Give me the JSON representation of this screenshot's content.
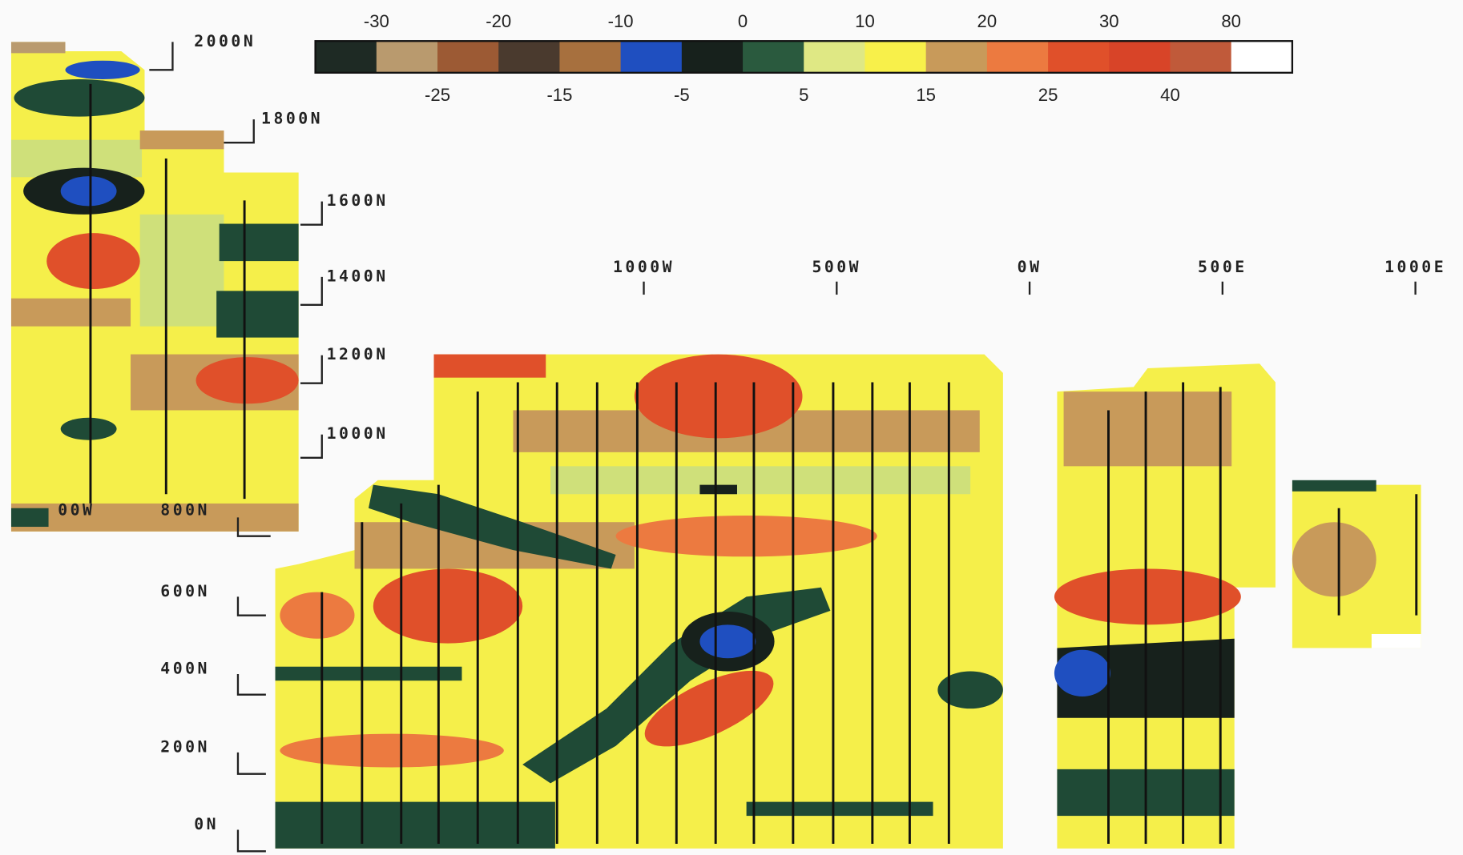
{
  "legend": {
    "top_labels": [
      "-30",
      "-20",
      "-10",
      "0",
      "10",
      "20",
      "30",
      "80"
    ],
    "bottom_labels": [
      "-25",
      "-15",
      "-5",
      "5",
      "15",
      "25",
      "40"
    ],
    "colors": [
      "#1e2a24",
      "#b99a6e",
      "#9c5a34",
      "#4a3a2e",
      "#a7703e",
      "#1f4fc0",
      "#17211c",
      "#2a5a3e",
      "#dfe884",
      "#f8f04a",
      "#c89a5a",
      "#ec7a40",
      "#e0502a",
      "#d84428",
      "#c05a3a",
      "#ffffff"
    ]
  },
  "north_labels": [
    "2000N",
    "1800N",
    "1600N",
    "1400N",
    "1200N",
    "1000N",
    "800N",
    "600N",
    "400N",
    "200N",
    "0N"
  ],
  "west_label": "00W",
  "east_labels": [
    "1000W",
    "500W",
    "0W",
    "500E",
    "1000E"
  ]
}
